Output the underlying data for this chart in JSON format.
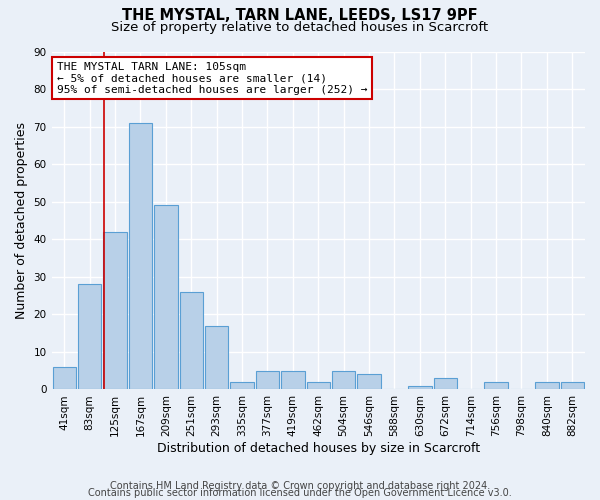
{
  "title1": "THE MYSTAL, TARN LANE, LEEDS, LS17 9PF",
  "title2": "Size of property relative to detached houses in Scarcroft",
  "xlabel": "Distribution of detached houses by size in Scarcroft",
  "ylabel": "Number of detached properties",
  "categories": [
    "41sqm",
    "83sqm",
    "125sqm",
    "167sqm",
    "209sqm",
    "251sqm",
    "293sqm",
    "335sqm",
    "377sqm",
    "419sqm",
    "462sqm",
    "504sqm",
    "546sqm",
    "588sqm",
    "630sqm",
    "672sqm",
    "714sqm",
    "756sqm",
    "798sqm",
    "840sqm",
    "882sqm"
  ],
  "values": [
    6,
    28,
    42,
    71,
    49,
    26,
    17,
    2,
    5,
    5,
    2,
    5,
    4,
    0,
    1,
    3,
    0,
    2,
    0,
    2,
    2
  ],
  "bar_color": "#b8d0e8",
  "bar_edge_color": "#5a9fd4",
  "bar_linewidth": 0.8,
  "ylim": [
    0,
    90
  ],
  "yticks": [
    0,
    10,
    20,
    30,
    40,
    50,
    60,
    70,
    80,
    90
  ],
  "vline_x": 1.57,
  "vline_color": "#cc0000",
  "annotation_line1": "THE MYSTAL TARN LANE: 105sqm",
  "annotation_line2": "← 5% of detached houses are smaller (14)",
  "annotation_line3": "95% of semi-detached houses are larger (252) →",
  "footer1": "Contains HM Land Registry data © Crown copyright and database right 2024.",
  "footer2": "Contains public sector information licensed under the Open Government Licence v3.0.",
  "bg_color": "#eaf0f8",
  "plot_bg_color": "#eaf0f8",
  "grid_color": "#ffffff",
  "title_fontsize": 10.5,
  "subtitle_fontsize": 9.5,
  "axis_label_fontsize": 9,
  "tick_fontsize": 7.5,
  "footer_fontsize": 7,
  "annotation_fontsize": 8
}
